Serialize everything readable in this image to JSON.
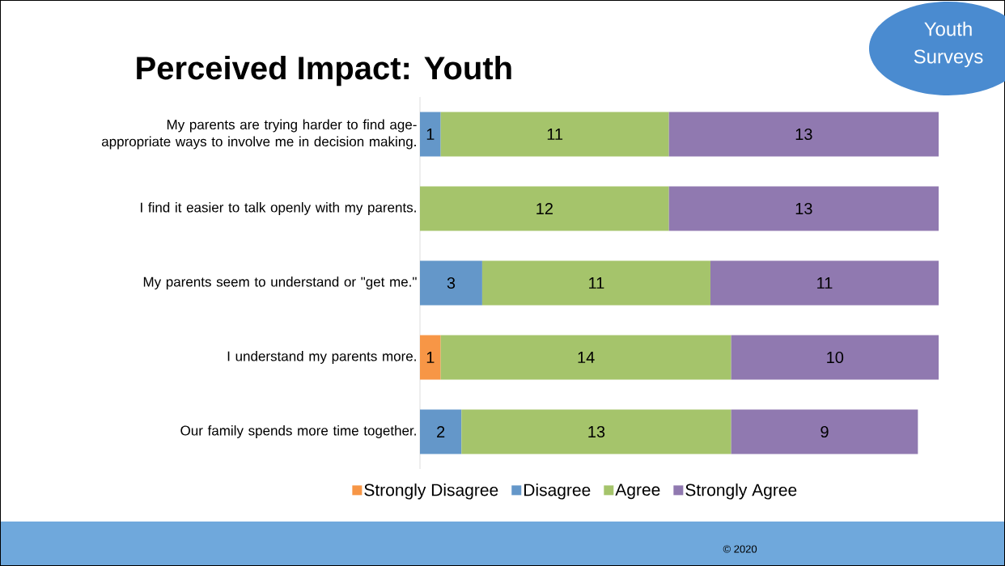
{
  "chart_data": {
    "type": "bar",
    "orientation": "horizontal",
    "stacked": true,
    "title": "Perceived Impact: Youth",
    "categories": [
      "My parents are trying harder to find age-appropriate ways to involve me in decision making.",
      "I find it easier to talk openly with my parents.",
      "My parents seem to understand or \"get me.\"",
      "I understand my parents more.",
      "Our family spends more time together."
    ],
    "series": [
      {
        "name": "Strongly Disagree",
        "color": "#f79646",
        "values": [
          null,
          null,
          null,
          1,
          null
        ]
      },
      {
        "name": "Disagree",
        "color": "#6497c9",
        "values": [
          1,
          null,
          3,
          null,
          2
        ]
      },
      {
        "name": "Agree",
        "color": "#a5c46b",
        "values": [
          11,
          12,
          11,
          14,
          13
        ]
      },
      {
        "name": "Strongly Agree",
        "color": "#9079b0",
        "values": [
          13,
          13,
          11,
          10,
          9
        ]
      }
    ],
    "xlim": [
      0,
      25
    ],
    "data_labels": true,
    "legend": "bottom",
    "annotations": [
      "Youth Surveys",
      "© 2020"
    ]
  }
}
